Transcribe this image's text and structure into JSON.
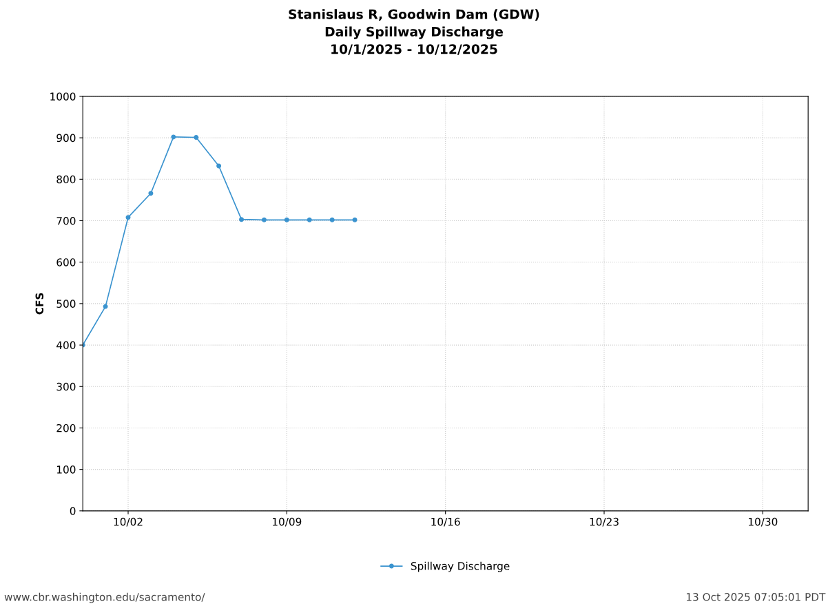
{
  "chart_data": {
    "type": "line",
    "title": "Stanislaus R, Goodwin Dam (GDW)\nDaily Spillway Discharge\n10/1/2025 - 10/12/2025",
    "ylabel": "CFS",
    "x": [
      "2025-09-30",
      "2025-10-01",
      "2025-10-02",
      "2025-10-03",
      "2025-10-04",
      "2025-10-05",
      "2025-10-06",
      "2025-10-07",
      "2025-10-08",
      "2025-10-09",
      "2025-10-10",
      "2025-10-11",
      "2025-10-12"
    ],
    "series": [
      {
        "name": "Spillway Discharge",
        "color": "#3a93cf",
        "values": [
          400,
          493,
          708,
          766,
          902,
          901,
          832,
          703,
          702,
          702,
          702,
          702,
          702
        ]
      }
    ],
    "xlim": [
      "2025-09-30",
      "2025-11-01"
    ],
    "xticks": [
      {
        "value": "2025-10-02",
        "label": "10/02"
      },
      {
        "value": "2025-10-09",
        "label": "10/09"
      },
      {
        "value": "2025-10-16",
        "label": "10/16"
      },
      {
        "value": "2025-10-23",
        "label": "10/23"
      },
      {
        "value": "2025-10-30",
        "label": "10/30"
      }
    ],
    "ylim": [
      0,
      1000
    ],
    "yticks": [
      0,
      100,
      200,
      300,
      400,
      500,
      600,
      700,
      800,
      900,
      1000
    ],
    "grid": true,
    "legend": "bottom",
    "marker": "circle",
    "line_style": "solid",
    "annotations": [
      "www.cbr.washington.edu/sacramento/",
      "13 Oct 2025 07:05:01 PDT"
    ]
  }
}
